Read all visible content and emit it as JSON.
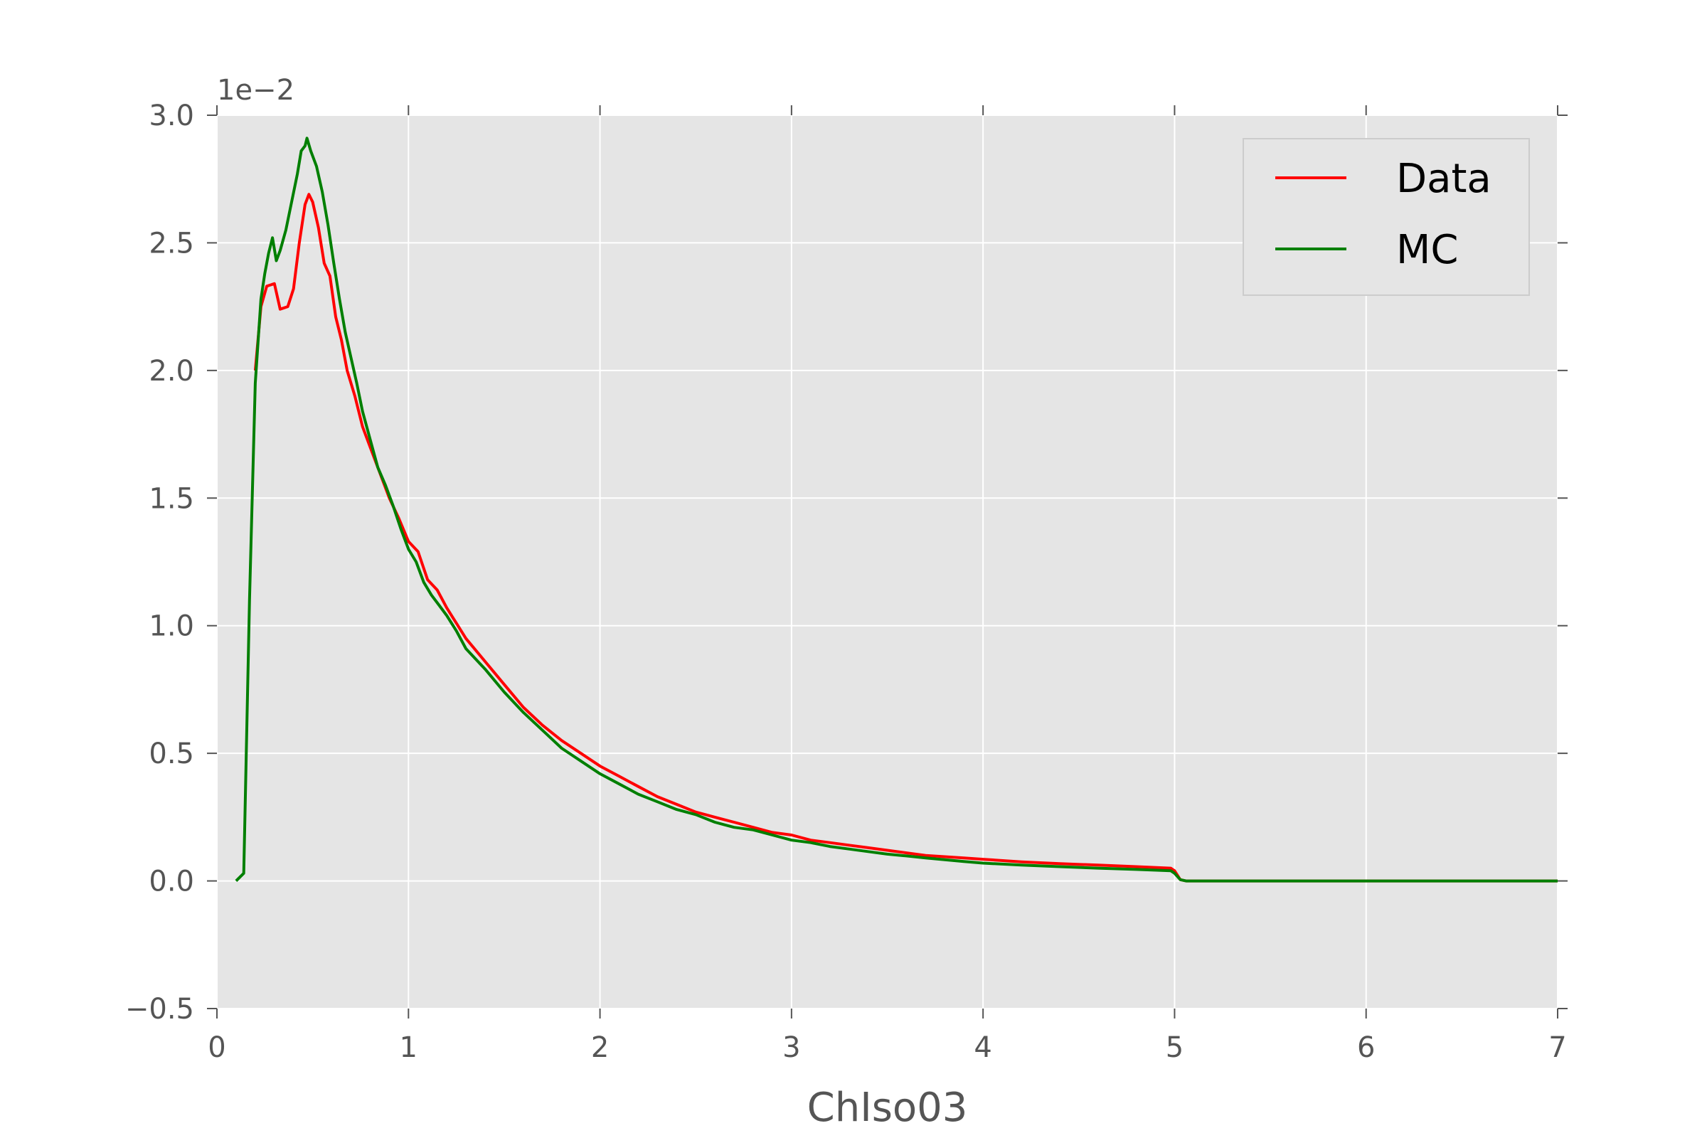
{
  "chart_data": {
    "type": "line",
    "title": "",
    "xlabel": "ChIso03",
    "ylabel": "",
    "y_offset_label": "1e−2",
    "xlim": [
      0,
      7
    ],
    "ylim": [
      -0.5,
      3.0
    ],
    "x_ticks": [
      0,
      1,
      2,
      3,
      4,
      5,
      6,
      7
    ],
    "x_tick_labels": [
      "0",
      "1",
      "2",
      "3",
      "4",
      "5",
      "6",
      "7"
    ],
    "y_ticks": [
      -0.5,
      0.0,
      0.5,
      1.0,
      1.5,
      2.0,
      2.5,
      3.0
    ],
    "y_tick_labels": [
      "−0.5",
      "0.0",
      "0.5",
      "1.0",
      "1.5",
      "2.0",
      "2.5",
      "3.0"
    ],
    "grid": true,
    "legend_position": "top-right",
    "series": [
      {
        "name": "Data",
        "color": "#ff0000",
        "points": [
          [
            0.2,
            2.0
          ],
          [
            0.23,
            2.25
          ],
          [
            0.26,
            2.33
          ],
          [
            0.3,
            2.34
          ],
          [
            0.33,
            2.24
          ],
          [
            0.37,
            2.25
          ],
          [
            0.4,
            2.32
          ],
          [
            0.43,
            2.5
          ],
          [
            0.46,
            2.65
          ],
          [
            0.48,
            2.69
          ],
          [
            0.5,
            2.66
          ],
          [
            0.53,
            2.56
          ],
          [
            0.56,
            2.42
          ],
          [
            0.59,
            2.37
          ],
          [
            0.62,
            2.21
          ],
          [
            0.65,
            2.12
          ],
          [
            0.68,
            2.0
          ],
          [
            0.72,
            1.9
          ],
          [
            0.76,
            1.78
          ],
          [
            0.8,
            1.7
          ],
          [
            0.85,
            1.6
          ],
          [
            0.9,
            1.5
          ],
          [
            0.95,
            1.42
          ],
          [
            1.0,
            1.33
          ],
          [
            1.05,
            1.29
          ],
          [
            1.1,
            1.18
          ],
          [
            1.15,
            1.14
          ],
          [
            1.2,
            1.07
          ],
          [
            1.25,
            1.01
          ],
          [
            1.3,
            0.95
          ],
          [
            1.4,
            0.86
          ],
          [
            1.5,
            0.77
          ],
          [
            1.6,
            0.68
          ],
          [
            1.7,
            0.61
          ],
          [
            1.8,
            0.55
          ],
          [
            1.9,
            0.5
          ],
          [
            2.0,
            0.45
          ],
          [
            2.1,
            0.41
          ],
          [
            2.2,
            0.37
          ],
          [
            2.3,
            0.33
          ],
          [
            2.4,
            0.3
          ],
          [
            2.5,
            0.27
          ],
          [
            2.6,
            0.25
          ],
          [
            2.7,
            0.23
          ],
          [
            2.8,
            0.21
          ],
          [
            2.9,
            0.19
          ],
          [
            3.0,
            0.18
          ],
          [
            3.1,
            0.16
          ],
          [
            3.2,
            0.15
          ],
          [
            3.3,
            0.14
          ],
          [
            3.4,
            0.13
          ],
          [
            3.5,
            0.12
          ],
          [
            3.6,
            0.11
          ],
          [
            3.7,
            0.1
          ],
          [
            3.8,
            0.095
          ],
          [
            3.9,
            0.09
          ],
          [
            4.0,
            0.085
          ],
          [
            4.2,
            0.075
          ],
          [
            4.4,
            0.068
          ],
          [
            4.6,
            0.062
          ],
          [
            4.8,
            0.056
          ],
          [
            4.98,
            0.05
          ],
          [
            5.0,
            0.04
          ],
          [
            5.03,
            0.005
          ],
          [
            5.06,
            0.0
          ],
          [
            7.0,
            0.0
          ]
        ]
      },
      {
        "name": "MC",
        "color": "#007f00",
        "points": [
          [
            0.1,
            0.0
          ],
          [
            0.14,
            0.03
          ],
          [
            0.17,
            1.1
          ],
          [
            0.2,
            1.95
          ],
          [
            0.23,
            2.28
          ],
          [
            0.25,
            2.38
          ],
          [
            0.27,
            2.46
          ],
          [
            0.29,
            2.52
          ],
          [
            0.31,
            2.43
          ],
          [
            0.33,
            2.47
          ],
          [
            0.36,
            2.55
          ],
          [
            0.39,
            2.66
          ],
          [
            0.42,
            2.77
          ],
          [
            0.44,
            2.86
          ],
          [
            0.46,
            2.88
          ],
          [
            0.47,
            2.91
          ],
          [
            0.49,
            2.86
          ],
          [
            0.52,
            2.8
          ],
          [
            0.55,
            2.7
          ],
          [
            0.58,
            2.57
          ],
          [
            0.61,
            2.42
          ],
          [
            0.64,
            2.28
          ],
          [
            0.67,
            2.15
          ],
          [
            0.7,
            2.05
          ],
          [
            0.73,
            1.95
          ],
          [
            0.76,
            1.84
          ],
          [
            0.8,
            1.73
          ],
          [
            0.84,
            1.62
          ],
          [
            0.88,
            1.55
          ],
          [
            0.92,
            1.47
          ],
          [
            0.96,
            1.38
          ],
          [
            1.0,
            1.3
          ],
          [
            1.04,
            1.25
          ],
          [
            1.08,
            1.17
          ],
          [
            1.12,
            1.12
          ],
          [
            1.16,
            1.08
          ],
          [
            1.2,
            1.04
          ],
          [
            1.25,
            0.98
          ],
          [
            1.3,
            0.91
          ],
          [
            1.4,
            0.83
          ],
          [
            1.5,
            0.74
          ],
          [
            1.6,
            0.66
          ],
          [
            1.7,
            0.59
          ],
          [
            1.8,
            0.52
          ],
          [
            1.9,
            0.47
          ],
          [
            2.0,
            0.42
          ],
          [
            2.1,
            0.38
          ],
          [
            2.2,
            0.34
          ],
          [
            2.3,
            0.31
          ],
          [
            2.4,
            0.28
          ],
          [
            2.5,
            0.26
          ],
          [
            2.6,
            0.23
          ],
          [
            2.7,
            0.21
          ],
          [
            2.8,
            0.2
          ],
          [
            2.9,
            0.18
          ],
          [
            3.0,
            0.16
          ],
          [
            3.1,
            0.15
          ],
          [
            3.2,
            0.135
          ],
          [
            3.3,
            0.125
          ],
          [
            3.4,
            0.115
          ],
          [
            3.5,
            0.105
          ],
          [
            3.6,
            0.098
          ],
          [
            3.7,
            0.09
          ],
          [
            3.8,
            0.083
          ],
          [
            3.9,
            0.076
          ],
          [
            4.0,
            0.07
          ],
          [
            4.2,
            0.062
          ],
          [
            4.4,
            0.056
          ],
          [
            4.6,
            0.05
          ],
          [
            4.8,
            0.045
          ],
          [
            4.98,
            0.04
          ],
          [
            5.0,
            0.03
          ],
          [
            5.03,
            0.005
          ],
          [
            5.06,
            0.0
          ],
          [
            7.0,
            0.0
          ]
        ]
      }
    ]
  }
}
